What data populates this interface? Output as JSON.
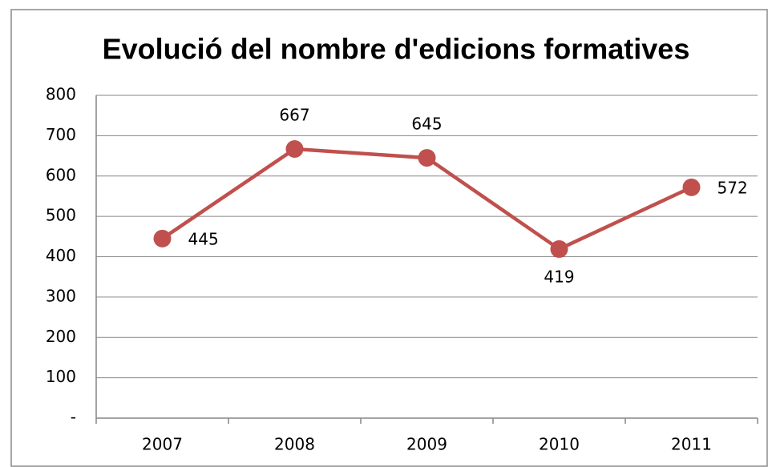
{
  "chart_data": {
    "type": "line",
    "title": "Evolució del nombre d'edicions formatives",
    "categories": [
      "2007",
      "2008",
      "2009",
      "2010",
      "2011"
    ],
    "series": [
      {
        "name": null,
        "color": "#c0504d",
        "values": [
          445,
          667,
          645,
          419,
          572
        ]
      }
    ],
    "ylim": [
      0,
      800
    ],
    "yticks": [
      {
        "value": 0,
        "label": "-"
      },
      100,
      200,
      300,
      400,
      500,
      600,
      700,
      800
    ],
    "grid": true
  }
}
